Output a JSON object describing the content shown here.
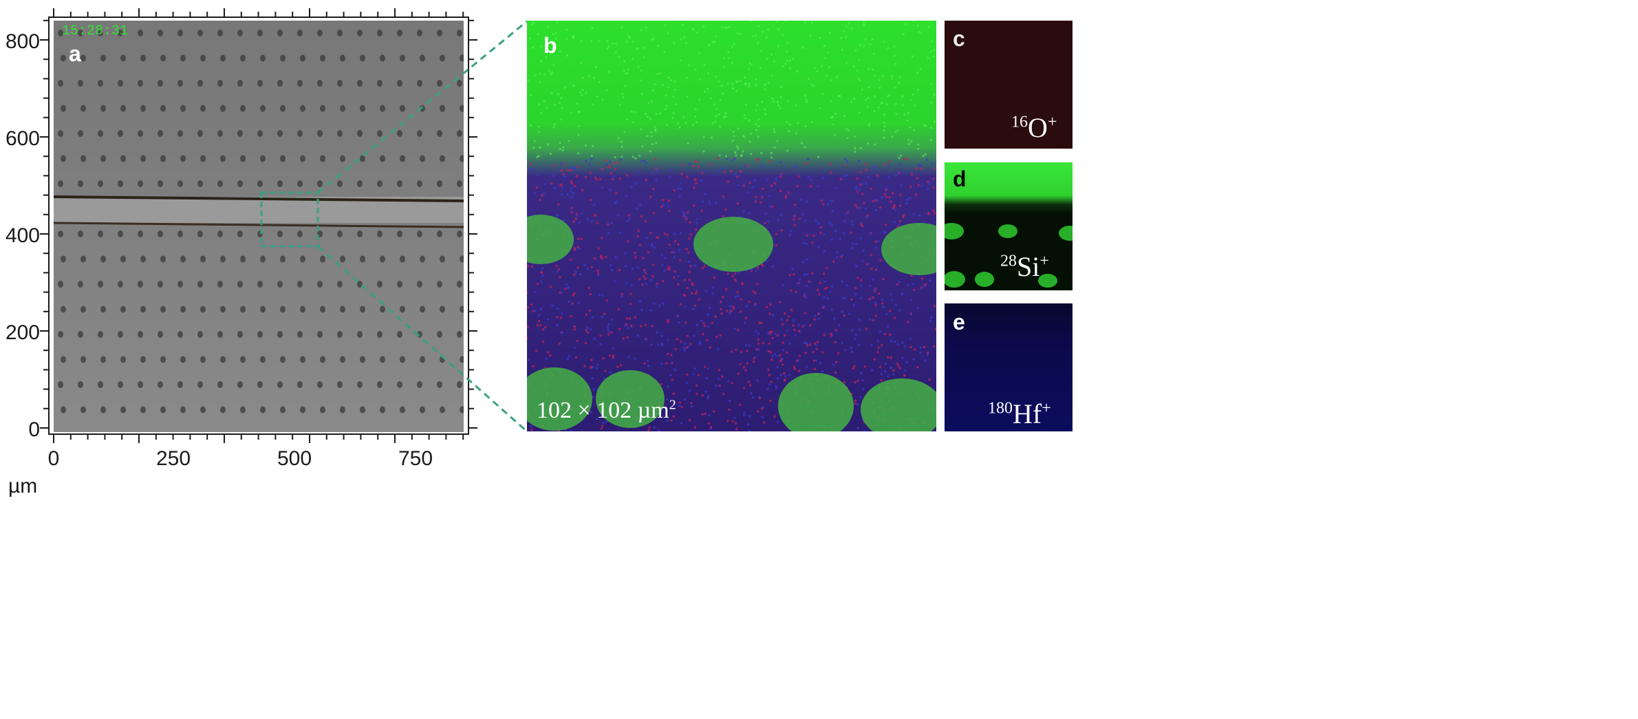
{
  "panel_a": {
    "letter": "a",
    "timestamp": "15:28:31",
    "timestamp_color": "#34e034",
    "y_ticks": [
      "800",
      "600",
      "400",
      "200",
      "0"
    ],
    "x_ticks": [
      "0",
      "250",
      "500",
      "750"
    ],
    "x_unit": "µm"
  },
  "panel_b": {
    "letter": "b",
    "area_text": "102 × 102 µm",
    "area_sup": "2"
  },
  "panel_c": {
    "letter": "c",
    "mass": "16",
    "element": "O",
    "charge": "+"
  },
  "panel_d": {
    "letter": "d",
    "mass": "28",
    "element": "Si",
    "charge": "+"
  },
  "panel_e": {
    "letter": "e",
    "mass": "180",
    "element": "Hf",
    "charge": "+"
  },
  "colors": {
    "zoom_outline": "#3aa085",
    "o_map": "#2a0c0c",
    "si_map": "#2fd12f",
    "hf_map": "#0c0c5e"
  }
}
